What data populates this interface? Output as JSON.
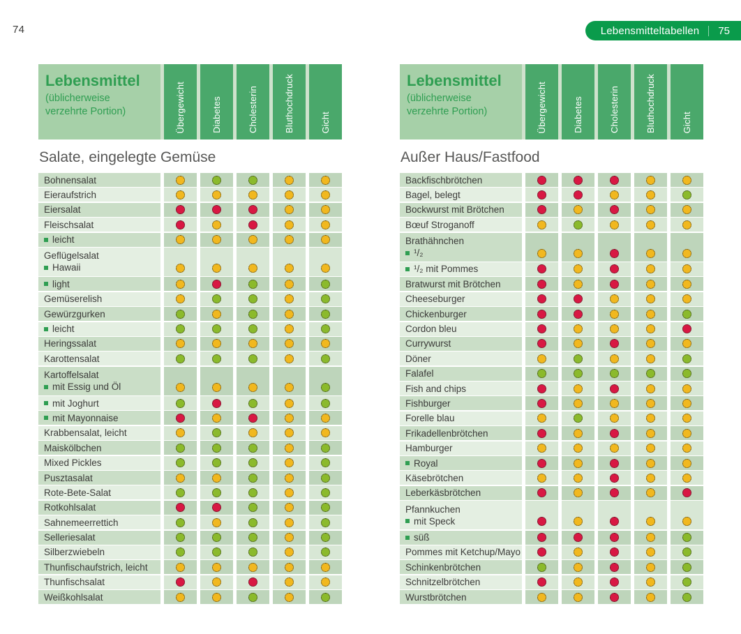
{
  "page": {
    "left_page_number": "74",
    "badge": {
      "label": "Lebensmitteltabellen",
      "page_number": "75"
    }
  },
  "table_header": {
    "title": "Lebensmittel",
    "subtitle": "(üblicherweise verzehrte Portion)",
    "columns": [
      "Übergewicht",
      "Diabetes",
      "Cholesterin",
      "Bluthochdruck",
      "Gicht"
    ]
  },
  "legend_colors": {
    "red": "#d81843",
    "yellow": "#f1b81f",
    "green": "#8bba2c"
  },
  "tables": [
    {
      "section_title": "Salate, eingelegte Gemüse",
      "rows": [
        {
          "label": "Bohnensalat",
          "dots": [
            "yellow",
            "green",
            "green",
            "yellow",
            "yellow"
          ]
        },
        {
          "label": "Eieraufstrich",
          "dots": [
            "yellow",
            "yellow",
            "yellow",
            "yellow",
            "yellow"
          ]
        },
        {
          "label": "Eiersalat",
          "dots": [
            "red",
            "red",
            "red",
            "yellow",
            "yellow"
          ]
        },
        {
          "label": "Fleischsalat",
          "dots": [
            "red",
            "yellow",
            "red",
            "yellow",
            "yellow"
          ]
        },
        {
          "bullet": true,
          "label": "leicht",
          "dots": [
            "yellow",
            "yellow",
            "yellow",
            "yellow",
            "yellow"
          ]
        },
        {
          "group": "Geflügelsalat",
          "bullet": true,
          "label": "Hawaii",
          "dots": [
            "yellow",
            "yellow",
            "yellow",
            "yellow",
            "yellow"
          ]
        },
        {
          "bullet": true,
          "label": "light",
          "dots": [
            "yellow",
            "red",
            "green",
            "yellow",
            "green"
          ]
        },
        {
          "label": "Gemüserelish",
          "dots": [
            "yellow",
            "green",
            "green",
            "yellow",
            "green"
          ]
        },
        {
          "label": "Gewürzgurken",
          "dots": [
            "green",
            "yellow",
            "green",
            "yellow",
            "green"
          ]
        },
        {
          "bullet": true,
          "label": "leicht",
          "dots": [
            "green",
            "green",
            "green",
            "yellow",
            "green"
          ]
        },
        {
          "label": "Heringssalat",
          "dots": [
            "yellow",
            "yellow",
            "yellow",
            "yellow",
            "yellow"
          ]
        },
        {
          "label": "Karottensalat",
          "dots": [
            "green",
            "green",
            "green",
            "yellow",
            "green"
          ]
        },
        {
          "group": "Kartoffelsalat",
          "bullet": true,
          "label": "mit Essig und Öl",
          "dots": [
            "yellow",
            "yellow",
            "yellow",
            "yellow",
            "green"
          ]
        },
        {
          "bullet": true,
          "label": "mit Joghurt",
          "dots": [
            "green",
            "red",
            "green",
            "yellow",
            "green"
          ]
        },
        {
          "bullet": true,
          "label": "mit Mayonnaise",
          "dots": [
            "red",
            "yellow",
            "red",
            "yellow",
            "yellow"
          ]
        },
        {
          "label": "Krabbensalat, leicht",
          "dots": [
            "yellow",
            "green",
            "yellow",
            "yellow",
            "yellow"
          ]
        },
        {
          "label": "Maiskölbchen",
          "dots": [
            "green",
            "green",
            "green",
            "yellow",
            "green"
          ]
        },
        {
          "label": "Mixed Pickles",
          "dots": [
            "green",
            "green",
            "green",
            "yellow",
            "green"
          ]
        },
        {
          "label": "Pusztasalat",
          "dots": [
            "yellow",
            "yellow",
            "green",
            "yellow",
            "green"
          ]
        },
        {
          "label": "Rote-Bete-Salat",
          "dots": [
            "green",
            "green",
            "green",
            "yellow",
            "green"
          ]
        },
        {
          "label": "Rotkohlsalat",
          "dots": [
            "red",
            "red",
            "green",
            "yellow",
            "green"
          ]
        },
        {
          "label": "Sahnemeerrettich",
          "dots": [
            "green",
            "yellow",
            "green",
            "yellow",
            "green"
          ]
        },
        {
          "label": "Selleriesalat",
          "dots": [
            "green",
            "green",
            "green",
            "yellow",
            "green"
          ]
        },
        {
          "label": "Silberzwiebeln",
          "dots": [
            "green",
            "green",
            "green",
            "yellow",
            "green"
          ]
        },
        {
          "label": "Thunfischaufstrich, leicht",
          "dots": [
            "yellow",
            "yellow",
            "yellow",
            "yellow",
            "yellow"
          ]
        },
        {
          "label": "Thunfischsalat",
          "dots": [
            "red",
            "yellow",
            "red",
            "yellow",
            "yellow"
          ]
        },
        {
          "label": "Weißkohlsalat",
          "dots": [
            "yellow",
            "yellow",
            "green",
            "yellow",
            "green"
          ]
        }
      ]
    },
    {
      "section_title": "Außer Haus/Fastfood",
      "rows": [
        {
          "label": "Backfischbrötchen",
          "dots": [
            "red",
            "red",
            "red",
            "yellow",
            "yellow"
          ]
        },
        {
          "label": "Bagel, belegt",
          "dots": [
            "red",
            "red",
            "yellow",
            "yellow",
            "green"
          ]
        },
        {
          "label": "Bockwurst mit Brötchen",
          "dots": [
            "red",
            "yellow",
            "red",
            "yellow",
            "yellow"
          ]
        },
        {
          "label": "Bœuf Stroganoff",
          "dots": [
            "yellow",
            "green",
            "yellow",
            "yellow",
            "yellow"
          ]
        },
        {
          "group": "Brathähnchen",
          "bullet": true,
          "label": "¹/₂",
          "dots": [
            "yellow",
            "yellow",
            "red",
            "yellow",
            "yellow"
          ]
        },
        {
          "bullet": true,
          "label": "¹/₂ mit Pommes",
          "dots": [
            "red",
            "yellow",
            "red",
            "yellow",
            "yellow"
          ]
        },
        {
          "label": "Bratwurst mit Brötchen",
          "dots": [
            "red",
            "yellow",
            "red",
            "yellow",
            "yellow"
          ]
        },
        {
          "label": "Cheeseburger",
          "dots": [
            "red",
            "red",
            "yellow",
            "yellow",
            "yellow"
          ]
        },
        {
          "label": "Chickenburger",
          "dots": [
            "red",
            "red",
            "yellow",
            "yellow",
            "green"
          ]
        },
        {
          "label": "Cordon bleu",
          "dots": [
            "red",
            "yellow",
            "yellow",
            "yellow",
            "red"
          ]
        },
        {
          "label": "Currywurst",
          "dots": [
            "red",
            "yellow",
            "red",
            "yellow",
            "yellow"
          ]
        },
        {
          "label": "Döner",
          "dots": [
            "yellow",
            "green",
            "yellow",
            "yellow",
            "green"
          ]
        },
        {
          "label": "Falafel",
          "dots": [
            "green",
            "green",
            "green",
            "green",
            "green"
          ]
        },
        {
          "label": "Fish and chips",
          "dots": [
            "red",
            "yellow",
            "red",
            "yellow",
            "yellow"
          ]
        },
        {
          "label": "Fishburger",
          "dots": [
            "red",
            "yellow",
            "yellow",
            "yellow",
            "yellow"
          ]
        },
        {
          "label": "Forelle blau",
          "dots": [
            "yellow",
            "green",
            "yellow",
            "yellow",
            "yellow"
          ]
        },
        {
          "label": "Frikadellenbrötchen",
          "dots": [
            "red",
            "yellow",
            "red",
            "yellow",
            "yellow"
          ]
        },
        {
          "label": "Hamburger",
          "dots": [
            "yellow",
            "yellow",
            "yellow",
            "yellow",
            "yellow"
          ]
        },
        {
          "bullet": true,
          "label": "Royal",
          "dots": [
            "red",
            "yellow",
            "red",
            "yellow",
            "yellow"
          ]
        },
        {
          "label": "Käsebrötchen",
          "dots": [
            "yellow",
            "yellow",
            "red",
            "yellow",
            "yellow"
          ]
        },
        {
          "label": "Leberkäsbrötchen",
          "dots": [
            "red",
            "yellow",
            "red",
            "yellow",
            "red"
          ]
        },
        {
          "group": "Pfannkuchen",
          "bullet": true,
          "label": "mit Speck",
          "dots": [
            "red",
            "yellow",
            "red",
            "yellow",
            "yellow"
          ]
        },
        {
          "bullet": true,
          "label": "süß",
          "dots": [
            "red",
            "red",
            "red",
            "yellow",
            "green"
          ]
        },
        {
          "label": "Pommes mit Ketchup/Mayo",
          "dots": [
            "red",
            "yellow",
            "red",
            "yellow",
            "green"
          ]
        },
        {
          "label": "Schinkenbrötchen",
          "dots": [
            "green",
            "yellow",
            "red",
            "yellow",
            "green"
          ]
        },
        {
          "label": "Schnitzelbrötchen",
          "dots": [
            "red",
            "yellow",
            "red",
            "yellow",
            "green"
          ]
        },
        {
          "label": "Wurstbrötchen",
          "dots": [
            "yellow",
            "yellow",
            "red",
            "yellow",
            "green"
          ]
        }
      ]
    }
  ]
}
